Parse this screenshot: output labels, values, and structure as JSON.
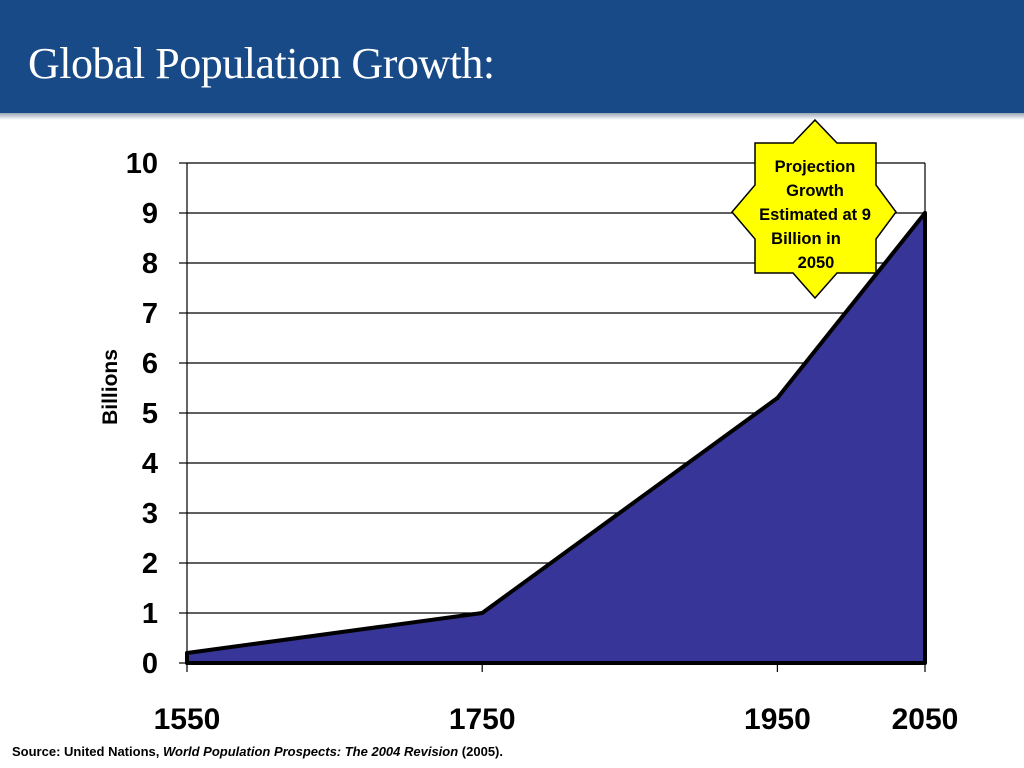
{
  "slide": {
    "title": "Global Population Growth:"
  },
  "source": {
    "prefix": "Source: United Nations, ",
    "publication": "World Population Prospects: The 2004 Revision",
    "suffix": " (2005)."
  },
  "callout": {
    "lines": [
      "Projection",
      "Growth",
      "Estimated at 9",
      "Billion in",
      "2050"
    ]
  },
  "colors": {
    "header": "#174a87",
    "area_fill": "#373597",
    "callout_fill": "#ffff00"
  },
  "chart_data": {
    "type": "area",
    "x": [
      1550,
      1750,
      1950,
      2050
    ],
    "xticks": [
      "1550",
      "1750",
      "1950",
      "2050"
    ],
    "series": [
      {
        "values": [
          0.2,
          1.0,
          5.3,
          9.0
        ]
      }
    ],
    "ylabel": "Billions",
    "xlabel": "",
    "ylim": [
      0,
      10
    ],
    "yticks": [
      "0",
      "1",
      "2",
      "3",
      "4",
      "5",
      "6",
      "7",
      "8",
      "9",
      "10"
    ],
    "grid": "horizontal"
  }
}
